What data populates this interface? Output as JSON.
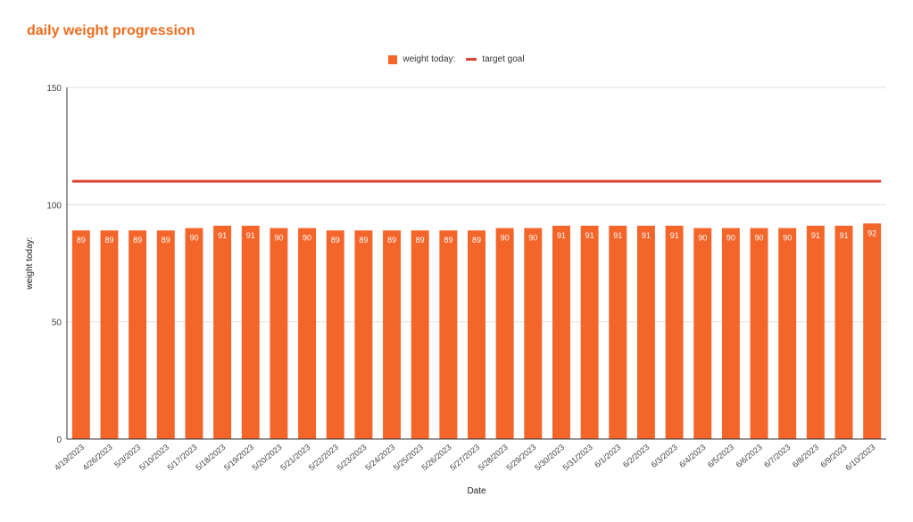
{
  "page_title": "daily weight progression",
  "legend": {
    "bar_label": "weight today:",
    "line_label": "target goal"
  },
  "colors": {
    "title": "#ef6c1e",
    "bar": "#f4652a",
    "line": "#db4437",
    "grid": "#e0e0e0",
    "axis": "#333333"
  },
  "chart_data": {
    "type": "bar",
    "title": "daily weight progression",
    "xlabel": "Date",
    "ylabel": "weight today:",
    "ylim": [
      0,
      150
    ],
    "yticks": [
      0,
      50,
      100,
      150
    ],
    "grid": true,
    "legend_position": "top",
    "categories": [
      "4/19/2023",
      "4/26/2023",
      "5/3/2023",
      "5/10/2023",
      "5/17/2023",
      "5/18/2023",
      "5/19/2023",
      "5/20/2023",
      "5/21/2023",
      "5/22/2023",
      "5/23/2023",
      "5/24/2023",
      "5/25/2023",
      "5/26/2023",
      "5/27/2023",
      "5/28/2023",
      "5/29/2023",
      "5/30/2023",
      "5/31/2023",
      "6/1/2023",
      "6/2/2023",
      "6/3/2023",
      "6/4/2023",
      "6/5/2023",
      "6/6/2023",
      "6/7/2023",
      "6/8/2023",
      "6/9/2023",
      "6/10/2023"
    ],
    "series": [
      {
        "name": "weight today:",
        "type": "bar",
        "values": [
          89,
          89,
          89,
          89,
          90,
          91,
          91,
          90,
          90,
          89,
          89,
          89,
          89,
          89,
          89,
          90,
          90,
          91,
          91,
          91,
          91,
          91,
          90,
          90,
          90,
          90,
          91,
          91,
          92
        ]
      },
      {
        "name": "target goal",
        "type": "line",
        "values": [
          110,
          110,
          110,
          110,
          110,
          110,
          110,
          110,
          110,
          110,
          110,
          110,
          110,
          110,
          110,
          110,
          110,
          110,
          110,
          110,
          110,
          110,
          110,
          110,
          110,
          110,
          110,
          110,
          110
        ]
      }
    ]
  }
}
